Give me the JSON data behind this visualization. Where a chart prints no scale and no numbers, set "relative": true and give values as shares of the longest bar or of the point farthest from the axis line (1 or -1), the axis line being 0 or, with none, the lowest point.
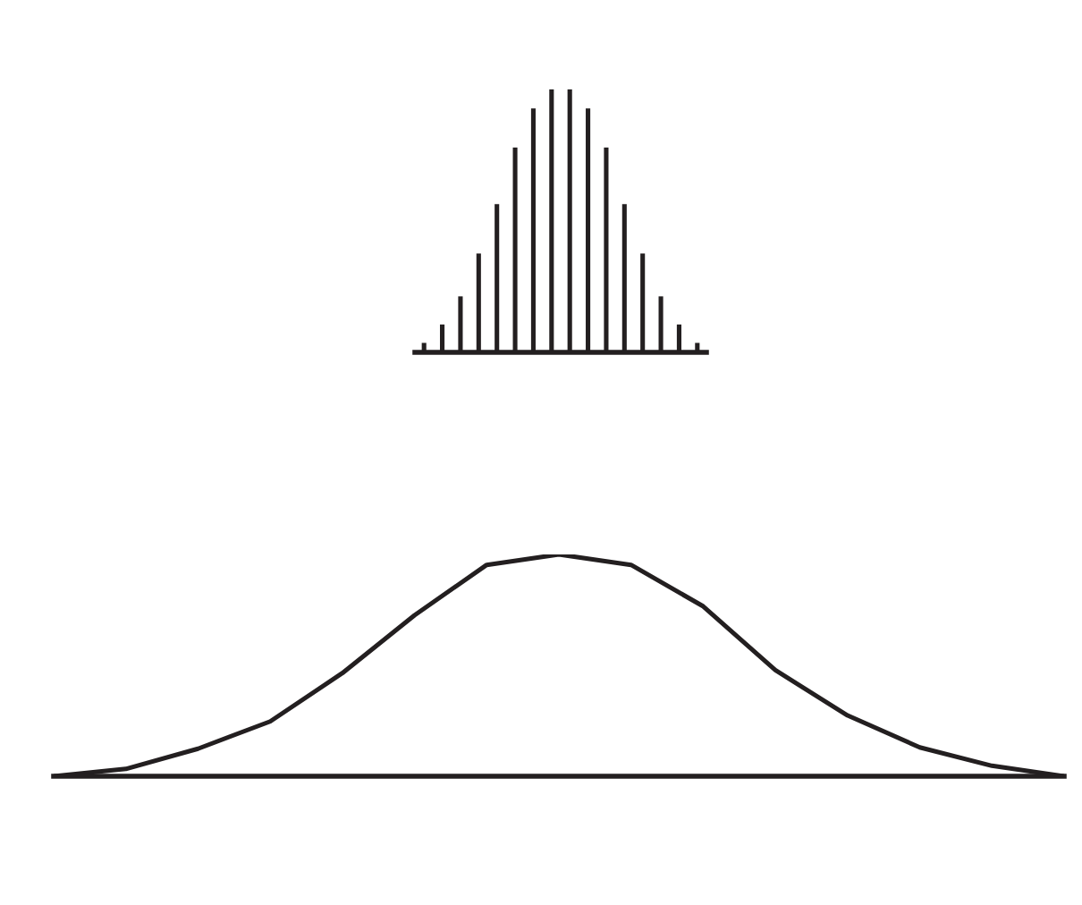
{
  "chart_data": [
    {
      "type": "bar",
      "relative": true,
      "categories": [
        null,
        null,
        null,
        null,
        null,
        null,
        null,
        null,
        null,
        null,
        null,
        null,
        null,
        null,
        null,
        null
      ],
      "values": [
        0.036,
        0.106,
        0.213,
        0.376,
        0.564,
        0.779,
        0.928,
        1,
        1,
        0.928,
        0.779,
        0.564,
        0.376,
        0.213,
        0.106,
        0.036
      ],
      "color": "#231f20",
      "grid": false,
      "legend": false
    },
    {
      "type": "line",
      "relative": true,
      "categories": [
        null,
        null,
        null,
        null,
        null,
        null,
        null,
        null,
        null,
        null,
        null,
        null,
        null,
        null,
        null
      ],
      "values": [
        0,
        0.033,
        0.124,
        0.247,
        0.465,
        0.726,
        0.953,
        1,
        0.953,
        0.766,
        0.478,
        0.274,
        0.13,
        0.047,
        0
      ],
      "color": "#231f20",
      "grid": false,
      "legend": false,
      "marker": "none"
    }
  ]
}
